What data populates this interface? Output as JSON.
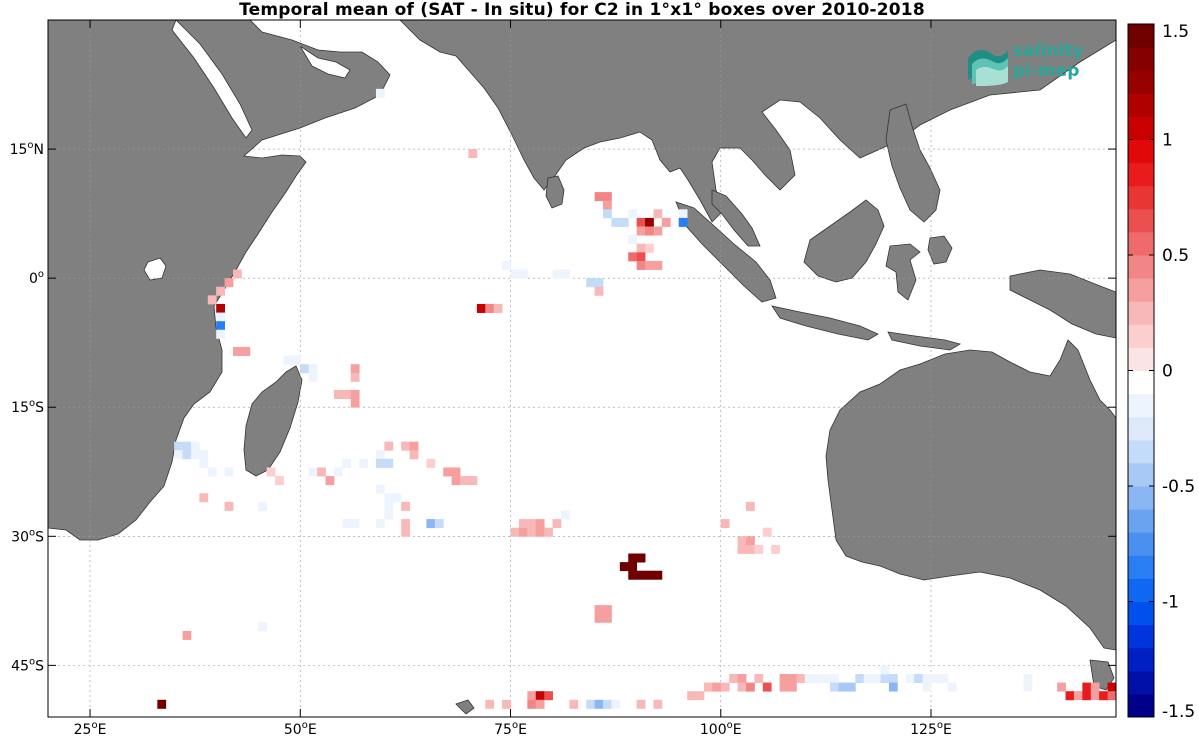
{
  "title": "Temporal mean of (SAT - In situ) for C2 in 1°x1° boxes over 2010-2018",
  "logo": {
    "line1": "salinity",
    "line2": "pi-mep",
    "color": "#27a79b",
    "icon": "salinity-waves-icon"
  },
  "map": {
    "lon_range": [
      20,
      147
    ],
    "lat_range": [
      -51,
      30
    ],
    "land_color": "#808080",
    "ocean_color": "#ffffff",
    "grid": true,
    "lon_ticks": [
      {
        "value": 25,
        "label": "25°E"
      },
      {
        "value": 50,
        "label": "50°E"
      },
      {
        "value": 75,
        "label": "75°E"
      },
      {
        "value": 100,
        "label": "100°E"
      },
      {
        "value": 125,
        "label": "125°E"
      }
    ],
    "lat_ticks": [
      {
        "value": 15,
        "label": "15°N"
      },
      {
        "value": 0,
        "label": "0°"
      },
      {
        "value": -15,
        "label": "15°S"
      },
      {
        "value": -30,
        "label": "30°S"
      },
      {
        "value": -45,
        "label": "45°S"
      }
    ]
  },
  "colorbar": {
    "range": [
      -1.5,
      1.5
    ],
    "ticks": [
      {
        "value": 1.5,
        "label": "1.5"
      },
      {
        "value": 1,
        "label": "1"
      },
      {
        "value": 0.5,
        "label": "0.5"
      },
      {
        "value": 0,
        "label": "0"
      },
      {
        "value": -0.5,
        "label": "-0.5"
      },
      {
        "value": -1,
        "label": "-1"
      },
      {
        "value": -1.5,
        "label": "-1.5"
      }
    ],
    "colors_low_to_high": [
      "#00008b",
      "#0010a8",
      "#0020c4",
      "#0035dd",
      "#0050ee",
      "#1068f2",
      "#2a7ef4",
      "#4a90f0",
      "#6aa3ef",
      "#8ab7f3",
      "#a8c9f6",
      "#c4dcf9",
      "#dde9fb",
      "#eef4fd",
      "#ffffff",
      "#fde4e4",
      "#fccece",
      "#f9b8b8",
      "#f59f9f",
      "#f28686",
      "#ef6b6b",
      "#ec4f4f",
      "#ea3535",
      "#e81c1c",
      "#e00808",
      "#c80000",
      "#b00000",
      "#980000",
      "#850000",
      "#700000"
    ]
  },
  "chart_data": {
    "type": "heatmap",
    "title": "Temporal mean of (SAT - In situ) for C2 in 1°x1° boxes over 2010-2018",
    "variable": "SAT - In situ",
    "value_range": [
      -1.5,
      1.5
    ],
    "cells": [
      {
        "lon": 59,
        "lat": 21,
        "v": -0.1
      },
      {
        "lon": 70,
        "lat": 14,
        "v": 0.2
      },
      {
        "lon": 74,
        "lat": 1,
        "v": -0.2
      },
      {
        "lon": 75,
        "lat": 0,
        "v": -0.1
      },
      {
        "lon": 76,
        "lat": 0,
        "v": -0.1
      },
      {
        "lon": 80,
        "lat": 0,
        "v": -0.1
      },
      {
        "lon": 81,
        "lat": 0,
        "v": -0.1
      },
      {
        "lon": 85,
        "lat": 9,
        "v": 0.4
      },
      {
        "lon": 86,
        "lat": 9,
        "v": 0.4
      },
      {
        "lon": 86,
        "lat": 8,
        "v": 0.3
      },
      {
        "lon": 86,
        "lat": 7,
        "v": -0.3
      },
      {
        "lon": 87,
        "lat": 6,
        "v": -0.4
      },
      {
        "lon": 88,
        "lat": 6,
        "v": -0.4
      },
      {
        "lon": 89,
        "lat": 7,
        "v": -0.1
      },
      {
        "lon": 90,
        "lat": 6,
        "v": 0.6
      },
      {
        "lon": 91,
        "lat": 6,
        "v": 1.2
      },
      {
        "lon": 92,
        "lat": 7,
        "v": 0.2
      },
      {
        "lon": 93,
        "lat": 6,
        "v": 0.3
      },
      {
        "lon": 95,
        "lat": 7,
        "v": -0.2
      },
      {
        "lon": 95,
        "lat": 6,
        "v": -0.8
      },
      {
        "lon": 90,
        "lat": 5,
        "v": 0.3
      },
      {
        "lon": 91,
        "lat": 5,
        "v": 0.4
      },
      {
        "lon": 92,
        "lat": 5,
        "v": 0.3
      },
      {
        "lon": 89,
        "lat": 4,
        "v": -0.1
      },
      {
        "lon": 90,
        "lat": 3,
        "v": 0.2
      },
      {
        "lon": 91,
        "lat": 3,
        "v": 0.1
      },
      {
        "lon": 89,
        "lat": 2,
        "v": 0.5
      },
      {
        "lon": 90,
        "lat": 2,
        "v": 0.6
      },
      {
        "lon": 90,
        "lat": 1,
        "v": 0.4
      },
      {
        "lon": 91,
        "lat": 1,
        "v": 0.3
      },
      {
        "lon": 92,
        "lat": 1,
        "v": 0.3
      },
      {
        "lon": 84,
        "lat": -1,
        "v": -0.3
      },
      {
        "lon": 85,
        "lat": -1,
        "v": -0.3
      },
      {
        "lon": 85,
        "lat": -2,
        "v": 0.2
      },
      {
        "lon": 71,
        "lat": -4,
        "v": 1.0
      },
      {
        "lon": 72,
        "lat": -4,
        "v": 0.4
      },
      {
        "lon": 73,
        "lat": -4,
        "v": 0.2
      },
      {
        "lon": 42,
        "lat": 0,
        "v": 0.2
      },
      {
        "lon": 41,
        "lat": -1,
        "v": 0.3
      },
      {
        "lon": 40,
        "lat": -2,
        "v": 0.2
      },
      {
        "lon": 39,
        "lat": -3,
        "v": 0.2
      },
      {
        "lon": 40,
        "lat": -4,
        "v": 1.1
      },
      {
        "lon": 40,
        "lat": -5,
        "v": -0.1
      },
      {
        "lon": 40,
        "lat": -6,
        "v": -0.8
      },
      {
        "lon": 40,
        "lat": -7,
        "v": -0.1
      },
      {
        "lon": 42,
        "lat": -9,
        "v": 0.3
      },
      {
        "lon": 43,
        "lat": -9,
        "v": 0.3
      },
      {
        "lon": 48,
        "lat": -10,
        "v": -0.1
      },
      {
        "lon": 49,
        "lat": -10,
        "v": -0.1
      },
      {
        "lon": 50,
        "lat": -11,
        "v": -0.3
      },
      {
        "lon": 51,
        "lat": -11,
        "v": -0.2
      },
      {
        "lon": 51,
        "lat": -12,
        "v": -0.2
      },
      {
        "lon": 56,
        "lat": -11,
        "v": 0.3
      },
      {
        "lon": 56,
        "lat": -12,
        "v": 0.2
      },
      {
        "lon": 54,
        "lat": -14,
        "v": 0.2
      },
      {
        "lon": 55,
        "lat": -14,
        "v": 0.2
      },
      {
        "lon": 56,
        "lat": -14,
        "v": 0.3
      },
      {
        "lon": 56,
        "lat": -15,
        "v": 0.3
      },
      {
        "lon": 35,
        "lat": -20,
        "v": -0.3
      },
      {
        "lon": 36,
        "lat": -20,
        "v": -0.4
      },
      {
        "lon": 37,
        "lat": -20,
        "v": -0.2
      },
      {
        "lon": 35,
        "lat": -21,
        "v": -0.2
      },
      {
        "lon": 36,
        "lat": -21,
        "v": -0.3
      },
      {
        "lon": 37,
        "lat": -21,
        "v": -0.2
      },
      {
        "lon": 38,
        "lat": -21,
        "v": -0.1
      },
      {
        "lon": 38,
        "lat": -22,
        "v": -0.1
      },
      {
        "lon": 39,
        "lat": -23,
        "v": -0.1
      },
      {
        "lon": 41,
        "lat": -23,
        "v": -0.2
      },
      {
        "lon": 46,
        "lat": -23,
        "v": 0.1
      },
      {
        "lon": 47,
        "lat": -24,
        "v": 0.1
      },
      {
        "lon": 38,
        "lat": -26,
        "v": 0.2
      },
      {
        "lon": 41,
        "lat": -27,
        "v": 0.2
      },
      {
        "lon": 45,
        "lat": -27,
        "v": -0.1
      },
      {
        "lon": 51,
        "lat": -23,
        "v": -0.2
      },
      {
        "lon": 52,
        "lat": -23,
        "v": 0.2
      },
      {
        "lon": 53,
        "lat": -24,
        "v": 0.3
      },
      {
        "lon": 54,
        "lat": -23,
        "v": -0.2
      },
      {
        "lon": 55,
        "lat": -22,
        "v": -0.1
      },
      {
        "lon": 57,
        "lat": -22,
        "v": -0.2
      },
      {
        "lon": 59,
        "lat": -21,
        "v": -0.2
      },
      {
        "lon": 59,
        "lat": -22,
        "v": -0.4
      },
      {
        "lon": 60,
        "lat": -22,
        "v": -0.3
      },
      {
        "lon": 60,
        "lat": -20,
        "v": 0.2
      },
      {
        "lon": 62,
        "lat": -20,
        "v": 0.2
      },
      {
        "lon": 63,
        "lat": -20,
        "v": 0.3
      },
      {
        "lon": 59,
        "lat": -25,
        "v": -0.1
      },
      {
        "lon": 60,
        "lat": -26,
        "v": -0.2
      },
      {
        "lon": 61,
        "lat": -26,
        "v": -0.2
      },
      {
        "lon": 62,
        "lat": -27,
        "v": 0.2
      },
      {
        "lon": 60,
        "lat": -27,
        "v": -0.1
      },
      {
        "lon": 55,
        "lat": -29,
        "v": -0.1
      },
      {
        "lon": 56,
        "lat": -29,
        "v": -0.2
      },
      {
        "lon": 59,
        "lat": -29,
        "v": -0.1
      },
      {
        "lon": 62,
        "lat": -29,
        "v": 0.2
      },
      {
        "lon": 62,
        "lat": -30,
        "v": 0.2
      },
      {
        "lon": 63,
        "lat": -21,
        "v": 0.2
      },
      {
        "lon": 65,
        "lat": -29,
        "v": -0.6
      },
      {
        "lon": 66,
        "lat": -29,
        "v": -0.3
      },
      {
        "lon": 65,
        "lat": -22,
        "v": 0.1
      },
      {
        "lon": 67,
        "lat": -23,
        "v": 0.3
      },
      {
        "lon": 68,
        "lat": -23,
        "v": 0.3
      },
      {
        "lon": 68,
        "lat": -24,
        "v": 0.3
      },
      {
        "lon": 69,
        "lat": -24,
        "v": 0.2
      },
      {
        "lon": 70,
        "lat": -24,
        "v": 0.2
      },
      {
        "lon": 60,
        "lat": -28,
        "v": -0.2
      },
      {
        "lon": 75,
        "lat": -30,
        "v": 0.2
      },
      {
        "lon": 76,
        "lat": -30,
        "v": 0.3
      },
      {
        "lon": 77,
        "lat": -30,
        "v": 0.2
      },
      {
        "lon": 78,
        "lat": -30,
        "v": 0.3
      },
      {
        "lon": 79,
        "lat": -30,
        "v": 0.2
      },
      {
        "lon": 76,
        "lat": -29,
        "v": 0.2
      },
      {
        "lon": 77,
        "lat": -29,
        "v": 0.2
      },
      {
        "lon": 78,
        "lat": -29,
        "v": 0.3
      },
      {
        "lon": 80,
        "lat": -29,
        "v": 0.2
      },
      {
        "lon": 81,
        "lat": -28,
        "v": -0.1
      },
      {
        "lon": 89,
        "lat": -33,
        "v": 1.5
      },
      {
        "lon": 90,
        "lat": -33,
        "v": 1.5
      },
      {
        "lon": 88,
        "lat": -34,
        "v": 1.5
      },
      {
        "lon": 89,
        "lat": -34,
        "v": 1.5
      },
      {
        "lon": 89,
        "lat": -35,
        "v": 1.5
      },
      {
        "lon": 90,
        "lat": -35,
        "v": 1.5
      },
      {
        "lon": 91,
        "lat": -35,
        "v": 1.5
      },
      {
        "lon": 92,
        "lat": -35,
        "v": 1.5
      },
      {
        "lon": 85,
        "lat": -39,
        "v": 0.3
      },
      {
        "lon": 86,
        "lat": -39,
        "v": 0.3
      },
      {
        "lon": 85,
        "lat": -40,
        "v": 0.3
      },
      {
        "lon": 86,
        "lat": -40,
        "v": 0.3
      },
      {
        "lon": 100,
        "lat": -29,
        "v": 0.2
      },
      {
        "lon": 103,
        "lat": -27,
        "v": 0.2
      },
      {
        "lon": 102,
        "lat": -31,
        "v": 0.2
      },
      {
        "lon": 103,
        "lat": -31,
        "v": 0.3
      },
      {
        "lon": 102,
        "lat": -32,
        "v": 0.2
      },
      {
        "lon": 103,
        "lat": -32,
        "v": 0.2
      },
      {
        "lon": 104,
        "lat": -32,
        "v": 0.1
      },
      {
        "lon": 105,
        "lat": -30,
        "v": 0.1
      },
      {
        "lon": 106,
        "lat": -32,
        "v": 0.1
      },
      {
        "lon": 36,
        "lat": -42,
        "v": 0.3
      },
      {
        "lon": 45,
        "lat": -41,
        "v": -0.2
      },
      {
        "lon": 33,
        "lat": -50,
        "v": 1.5
      },
      {
        "lon": 72,
        "lat": -50,
        "v": 0.2
      },
      {
        "lon": 74,
        "lat": -50,
        "v": 0.2
      },
      {
        "lon": 77,
        "lat": -49,
        "v": 0.3
      },
      {
        "lon": 78,
        "lat": -49,
        "v": 1.0
      },
      {
        "lon": 79,
        "lat": -49,
        "v": 0.6
      },
      {
        "lon": 77,
        "lat": -50,
        "v": 0.4
      },
      {
        "lon": 78,
        "lat": -50,
        "v": 0.3
      },
      {
        "lon": 82,
        "lat": -50,
        "v": 0.2
      },
      {
        "lon": 84,
        "lat": -50,
        "v": -0.3
      },
      {
        "lon": 85,
        "lat": -50,
        "v": -0.6
      },
      {
        "lon": 86,
        "lat": -50,
        "v": -0.3
      },
      {
        "lon": 87,
        "lat": -50,
        "v": -0.1
      },
      {
        "lon": 90,
        "lat": -50,
        "v": 0.2
      },
      {
        "lon": 92,
        "lat": -50,
        "v": 0.2
      },
      {
        "lon": 96,
        "lat": -49,
        "v": 0.2
      },
      {
        "lon": 97,
        "lat": -49,
        "v": 0.2
      },
      {
        "lon": 98,
        "lat": -48,
        "v": 0.2
      },
      {
        "lon": 99,
        "lat": -48,
        "v": 0.3
      },
      {
        "lon": 100,
        "lat": -48,
        "v": 0.2
      },
      {
        "lon": 101,
        "lat": -47,
        "v": 0.2
      },
      {
        "lon": 102,
        "lat": -47,
        "v": 0.3
      },
      {
        "lon": 102,
        "lat": -48,
        "v": 0.2
      },
      {
        "lon": 103,
        "lat": -48,
        "v": 0.4
      },
      {
        "lon": 104,
        "lat": -47,
        "v": 0.2
      },
      {
        "lon": 105,
        "lat": -48,
        "v": 0.6
      },
      {
        "lon": 107,
        "lat": -47,
        "v": 0.3
      },
      {
        "lon": 108,
        "lat": -47,
        "v": 0.3
      },
      {
        "lon": 107,
        "lat": -48,
        "v": 0.3
      },
      {
        "lon": 108,
        "lat": -48,
        "v": 0.3
      },
      {
        "lon": 109,
        "lat": -47,
        "v": 0.2
      },
      {
        "lon": 110,
        "lat": -47,
        "v": -0.1
      },
      {
        "lon": 111,
        "lat": -47,
        "v": -0.1
      },
      {
        "lon": 112,
        "lat": -47,
        "v": -0.1
      },
      {
        "lon": 113,
        "lat": -47,
        "v": -0.2
      },
      {
        "lon": 113,
        "lat": -48,
        "v": -0.3
      },
      {
        "lon": 114,
        "lat": -48,
        "v": -0.5
      },
      {
        "lon": 115,
        "lat": -48,
        "v": -0.5
      },
      {
        "lon": 116,
        "lat": -47,
        "v": -0.3
      },
      {
        "lon": 117,
        "lat": -47,
        "v": -0.2
      },
      {
        "lon": 118,
        "lat": -47,
        "v": -0.2
      },
      {
        "lon": 119,
        "lat": -47,
        "v": -0.3
      },
      {
        "lon": 119,
        "lat": -46,
        "v": -0.2
      },
      {
        "lon": 120,
        "lat": -47,
        "v": -0.3
      },
      {
        "lon": 120,
        "lat": -48,
        "v": -0.6
      },
      {
        "lon": 122,
        "lat": -47,
        "v": -0.1
      },
      {
        "lon": 123,
        "lat": -47,
        "v": -0.3
      },
      {
        "lon": 124,
        "lat": -47,
        "v": -0.2
      },
      {
        "lon": 125,
        "lat": -47,
        "v": -0.1
      },
      {
        "lon": 126,
        "lat": -47,
        "v": -0.2
      },
      {
        "lon": 124,
        "lat": -48,
        "v": -0.1
      },
      {
        "lon": 127,
        "lat": -48,
        "v": -0.1
      },
      {
        "lon": 136,
        "lat": -47,
        "v": -0.1
      },
      {
        "lon": 136,
        "lat": -48,
        "v": -0.1
      },
      {
        "lon": 140,
        "lat": -48,
        "v": 0.3
      },
      {
        "lon": 143,
        "lat": -48,
        "v": 0.8
      },
      {
        "lon": 144,
        "lat": -48,
        "v": 0.3
      },
      {
        "lon": 146,
        "lat": -48,
        "v": 1.0
      },
      {
        "lon": 141,
        "lat": -49,
        "v": 0.9
      },
      {
        "lon": 142,
        "lat": -49,
        "v": 0.3
      },
      {
        "lon": 143,
        "lat": -49,
        "v": 0.9
      },
      {
        "lon": 144,
        "lat": -49,
        "v": 0.3
      },
      {
        "lon": 145,
        "lat": -49,
        "v": 0.9
      },
      {
        "lon": 146,
        "lat": -49,
        "v": 0.5
      }
    ]
  }
}
